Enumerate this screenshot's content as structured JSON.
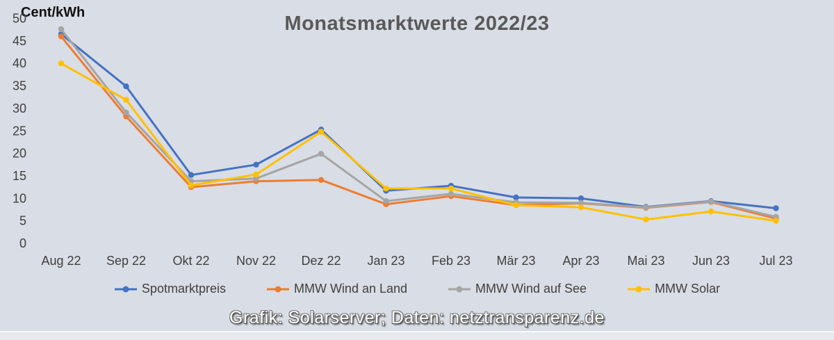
{
  "page": {
    "background_color": "#D9DDE5",
    "caption": "Grafik: Solarserver; Daten: netztransparenz.de"
  },
  "chart_data": {
    "type": "line",
    "title": "Monatsmarktwerte 2022/23",
    "ylabel": "Cent/kWh",
    "xlabel": "",
    "ylim": [
      0,
      50
    ],
    "ytick_step": 5,
    "grid": false,
    "legend_position": "bottom",
    "marker": "circle",
    "categories": [
      "Aug 22",
      "Sep 22",
      "Okt 22",
      "Nov 22",
      "Dez 22",
      "Jan 23",
      "Feb 23",
      "Mär 23",
      "Apr 23",
      "Mai 23",
      "Jun 23",
      "Jul 23"
    ],
    "series": [
      {
        "name": "Spotmarktpreis",
        "color": "#4472C4",
        "values": [
          46.5,
          34.9,
          15.2,
          17.5,
          25.3,
          11.7,
          12.8,
          10.2,
          10.0,
          8.1,
          9.4,
          7.8
        ]
      },
      {
        "name": "MMW Wind an Land",
        "color": "#ED7D31",
        "values": [
          46.0,
          28.2,
          12.5,
          13.8,
          14.1,
          8.7,
          10.5,
          8.5,
          8.9,
          7.9,
          9.2,
          5.5
        ]
      },
      {
        "name": "MMW Wind auf See",
        "color": "#A5A5A5",
        "values": [
          47.6,
          29.1,
          13.8,
          14.4,
          19.9,
          9.4,
          11.0,
          9.1,
          9.0,
          8.0,
          9.3,
          5.9
        ]
      },
      {
        "name": "MMW Solar",
        "color": "#FFC000",
        "values": [
          40.0,
          31.9,
          12.9,
          15.3,
          24.8,
          12.2,
          12.2,
          8.5,
          8.0,
          5.3,
          7.1,
          5.0
        ]
      }
    ],
    "axis_text_color": "#3F3F3F"
  }
}
